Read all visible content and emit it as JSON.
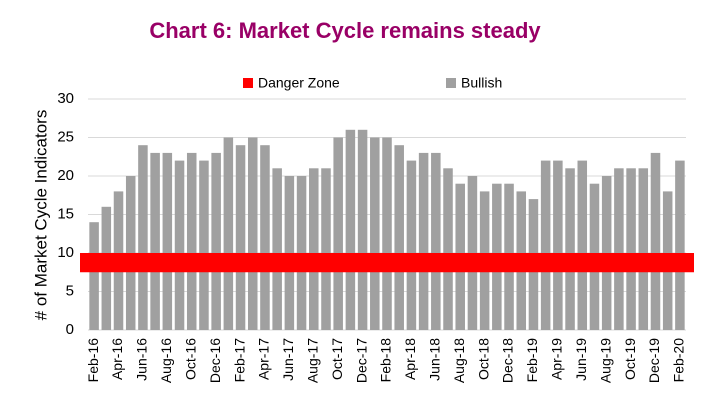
{
  "chart_data": {
    "type": "bar",
    "title": "Chart 6: Market Cycle remains steady",
    "y_label": "# of Market Cycle Indicators",
    "categories": [
      "Feb-16",
      null,
      "Apr-16",
      null,
      "Jun-16",
      null,
      "Aug-16",
      null,
      "Oct-16",
      null,
      "Dec-16",
      null,
      "Feb-17",
      null,
      "Apr-17",
      null,
      "Jun-17",
      null,
      "Aug-17",
      null,
      "Oct-17",
      null,
      "Dec-17",
      null,
      "Feb-18",
      null,
      "Apr-18",
      null,
      "Jun-18",
      null,
      "Aug-18",
      null,
      "Oct-18",
      null,
      "Dec-18",
      null,
      "Feb-19",
      null,
      "Apr-19",
      null,
      "Jun-19",
      null,
      "Aug-19",
      null,
      "Oct-19",
      null,
      "Dec-19",
      null,
      "Feb-20"
    ],
    "series": [
      {
        "name": "Bullish",
        "color": "#a0a0a0",
        "values": [
          14,
          16,
          18,
          20,
          24,
          23,
          23,
          22,
          23,
          22,
          23,
          25,
          24,
          25,
          24,
          21,
          20,
          20,
          21,
          21,
          25,
          26,
          26,
          25,
          25,
          24,
          22,
          23,
          23,
          21,
          19,
          20,
          18,
          19,
          19,
          18,
          17,
          22,
          22,
          21,
          22,
          19,
          20,
          21,
          21,
          21,
          23,
          18,
          22
        ]
      }
    ],
    "danger_zone": {
      "name": "Danger Zone",
      "color": "#ff0000",
      "range": [
        7.5,
        10
      ]
    },
    "ylim": [
      0,
      30
    ],
    "yticks": [
      0,
      5,
      10,
      15,
      20,
      25,
      30
    ],
    "grid": true,
    "legend": "top"
  }
}
